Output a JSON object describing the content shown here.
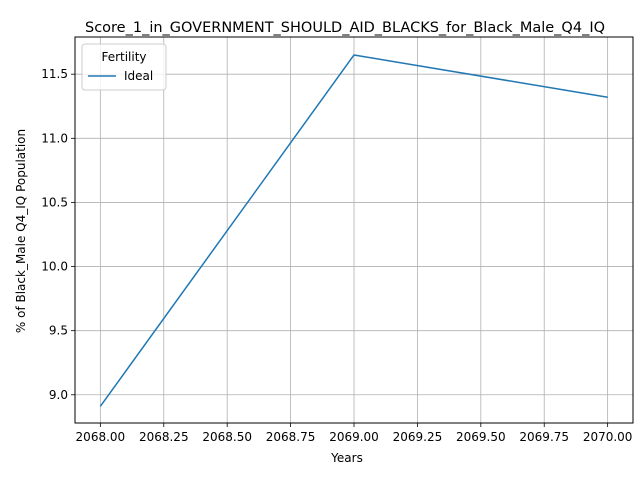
{
  "chart_data": {
    "type": "line",
    "title": "Score_1_in_GOVERNMENT_SHOULD_AID_BLACKS_for_Black_Male_Q4_IQ",
    "xlabel": "Years",
    "ylabel": "% of Black_Male Q4_IQ Population",
    "xlim": [
      2067.9,
      2070.1
    ],
    "ylim": [
      8.78,
      11.79
    ],
    "xticks": [
      "2068.00",
      "2068.25",
      "2068.50",
      "2068.75",
      "2069.00",
      "2069.25",
      "2069.50",
      "2069.75",
      "2070.00"
    ],
    "yticks": [
      "9.0",
      "9.5",
      "10.0",
      "10.5",
      "11.0",
      "11.5"
    ],
    "grid": true,
    "legend": {
      "title": "Fertility",
      "position": "top-left"
    },
    "series": [
      {
        "name": "Ideal",
        "color": "#1f77b4",
        "x": [
          2068,
          2069,
          2070
        ],
        "y": [
          8.91,
          11.65,
          11.32
        ]
      }
    ]
  }
}
